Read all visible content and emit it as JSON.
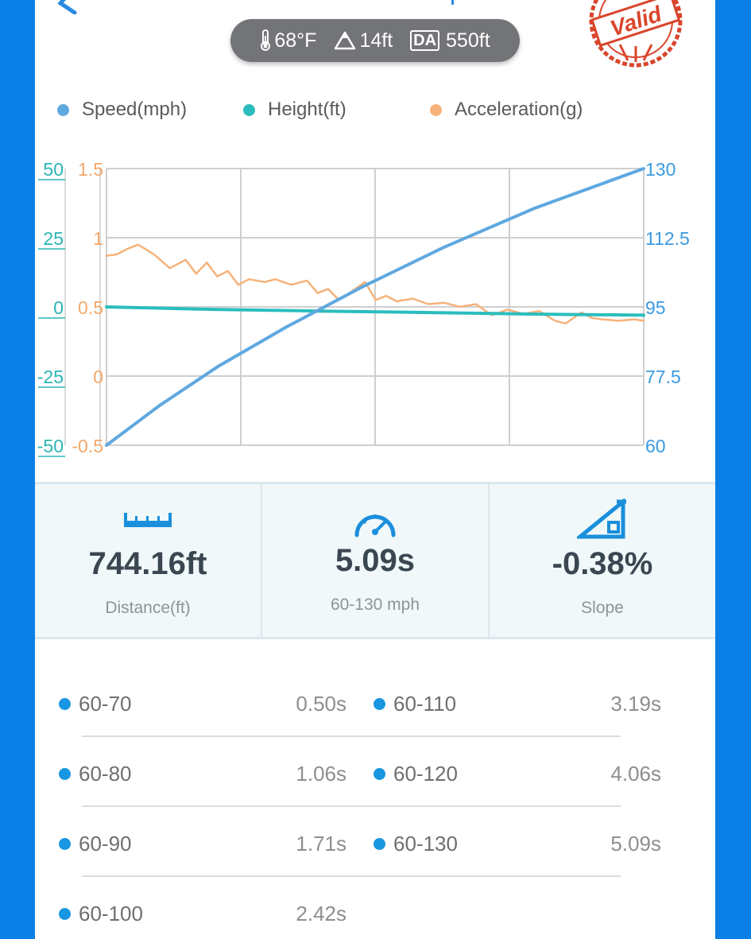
{
  "conditions": {
    "temperature": "68°F",
    "elevation": "14ft",
    "da_badge": "DA",
    "density_altitude": "550ft"
  },
  "stamp": {
    "text": "Valid",
    "color": "#d9452b"
  },
  "legend": [
    {
      "label": "Speed(mph)",
      "color": "#5fa8e0"
    },
    {
      "label": "Height(ft)",
      "color": "#2bbdbd"
    },
    {
      "label": "Acceleration(g)",
      "color": "#f5b27a"
    }
  ],
  "chart_data": {
    "type": "line",
    "grid": true,
    "axes": {
      "height_ticks": [
        "50",
        "25",
        "0",
        "-25",
        "-50"
      ],
      "height_range": [
        -50,
        50
      ],
      "accel_ticks": [
        "1.5",
        "1",
        "0.5",
        "0",
        "-0.5"
      ],
      "accel_range": [
        -0.5,
        1.5
      ],
      "speed_ticks": [
        "130",
        "112.5",
        "95",
        "77.5",
        "60"
      ],
      "speed_range": [
        60,
        130
      ],
      "x_range": [
        0,
        5.09
      ]
    },
    "series": [
      {
        "name": "Speed(mph)",
        "axis": "speed",
        "color": "#5fa8e0",
        "x": [
          0,
          0.5,
          1.06,
          1.71,
          2.42,
          3.19,
          4.06,
          5.09
        ],
        "y": [
          60,
          70,
          80,
          90,
          100,
          110,
          120,
          130
        ]
      },
      {
        "name": "Height(ft)",
        "axis": "height",
        "color": "#2bbdbd",
        "x": [
          0,
          1,
          2,
          3,
          4,
          5.09
        ],
        "y": [
          0,
          -0.9,
          -1.5,
          -2.0,
          -2.6,
          -3.0
        ]
      },
      {
        "name": "Acceleration(g)",
        "axis": "accel",
        "color": "#f5b27a",
        "x": [
          0,
          0.1,
          0.2,
          0.3,
          0.45,
          0.6,
          0.75,
          0.85,
          0.95,
          1.05,
          1.15,
          1.25,
          1.35,
          1.5,
          1.6,
          1.75,
          1.9,
          2.0,
          2.1,
          2.2,
          2.3,
          2.45,
          2.55,
          2.65,
          2.75,
          2.9,
          3.05,
          3.2,
          3.35,
          3.5,
          3.65,
          3.8,
          3.95,
          4.1,
          4.25,
          4.35,
          4.5,
          4.6,
          4.7,
          4.85,
          5.0,
          5.09
        ],
        "y": [
          0.87,
          0.88,
          0.92,
          0.95,
          0.88,
          0.78,
          0.84,
          0.74,
          0.82,
          0.72,
          0.76,
          0.66,
          0.7,
          0.68,
          0.7,
          0.66,
          0.69,
          0.6,
          0.63,
          0.55,
          0.6,
          0.68,
          0.55,
          0.58,
          0.54,
          0.56,
          0.52,
          0.53,
          0.5,
          0.52,
          0.44,
          0.48,
          0.45,
          0.47,
          0.4,
          0.38,
          0.46,
          0.42,
          0.41,
          0.4,
          0.41,
          0.4
        ]
      }
    ]
  },
  "stats": [
    {
      "icon": "ruler-icon",
      "value": "744.16ft",
      "label": "Distance(ft)"
    },
    {
      "icon": "speedometer-icon",
      "value": "5.09s",
      "label": "60-130 mph"
    },
    {
      "icon": "slope-icon",
      "value": "-0.38%",
      "label": "Slope"
    }
  ],
  "splits": [
    {
      "left": {
        "range": "60-70",
        "time": "0.50s"
      },
      "right": {
        "range": "60-110",
        "time": "3.19s"
      }
    },
    {
      "left": {
        "range": "60-80",
        "time": "1.06s"
      },
      "right": {
        "range": "60-120",
        "time": "4.06s"
      }
    },
    {
      "left": {
        "range": "60-90",
        "time": "1.71s"
      },
      "right": {
        "range": "60-130",
        "time": "5.09s"
      }
    },
    {
      "left": {
        "range": "60-100",
        "time": "2.42s"
      }
    }
  ]
}
